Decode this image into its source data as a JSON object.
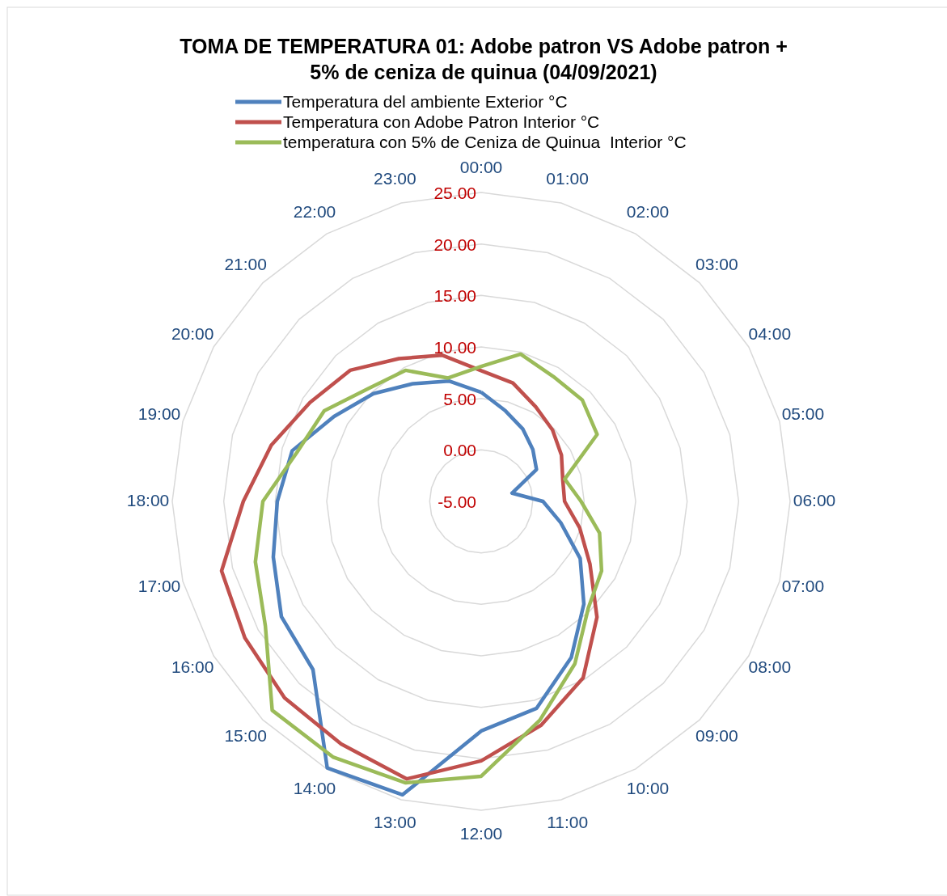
{
  "chart_data": {
    "type": "radar",
    "title": "TOMA DE TEMPERATURA 01: Adobe patron VS Adobe patron + 5% de ceniza de quinua (04/09/2021)",
    "categories": [
      "00:00",
      "01:00",
      "02:00",
      "03:00",
      "04:00",
      "05:00",
      "06:00",
      "07:00",
      "08:00",
      "09:00",
      "10:00",
      "11:00",
      "12:00",
      "13:00",
      "14:00",
      "15:00",
      "16:00",
      "17:00",
      "18:00",
      "19:00",
      "20:00",
      "21:00",
      "22:00",
      "23:00"
    ],
    "series": [
      {
        "name": "Temperatura del ambiente Exterior °C",
        "color": "#4f81bd",
        "values": [
          5.6,
          4.1,
          3.1,
          2.1,
          1.2,
          -1.9,
          1.0,
          3.0,
          6.1,
          9.1,
          12.5,
          15.8,
          17.3,
          24.5,
          24.9,
          18.1,
          17.4,
          15.9,
          14.8,
          14.0,
          11.5,
          9.8,
          8.2,
          7.1
        ]
      },
      {
        "name": "Temperatura con Adobe Patron Interior °C",
        "color": "#c0504d",
        "values": [
          7.7,
          6.9,
          5.6,
          4.8,
          4.0,
          3.2,
          3.1,
          4.9,
          7.2,
          10.9,
          14.8,
          17.5,
          20.2,
          22.9,
          22.2,
          22.0,
          21.5,
          21.1,
          18.1,
          16.1,
          14.2,
          13.0,
          11.0,
          9.7
        ]
      },
      {
        "name": "temperatura con 5% de Ceniza de Quinua  Interior °C",
        "color": "#9bbb59",
        "values": [
          8.1,
          9.8,
          9.0,
          8.9,
          8.0,
          3.4,
          4.7,
          6.9,
          8.5,
          9.7,
          13.2,
          17.0,
          21.7,
          23.3,
          23.7,
          23.7,
          19.2,
          17.7,
          16.2,
          13.5,
          12.6,
          10.5,
          9.7,
          7.4
        ]
      }
    ],
    "ylim": [
      -5,
      25
    ],
    "yticks": [
      {
        "value": -5,
        "label": "-5.00"
      },
      {
        "value": 0,
        "label": "0.00"
      },
      {
        "value": 5,
        "label": "5.00"
      },
      {
        "value": 10,
        "label": "10.00"
      },
      {
        "value": 15,
        "label": "15.00"
      },
      {
        "value": 20,
        "label": "20.00"
      },
      {
        "value": 25,
        "label": "25.00"
      }
    ],
    "grid": true,
    "legend": "top",
    "marker": "none",
    "line_style": "solid"
  }
}
